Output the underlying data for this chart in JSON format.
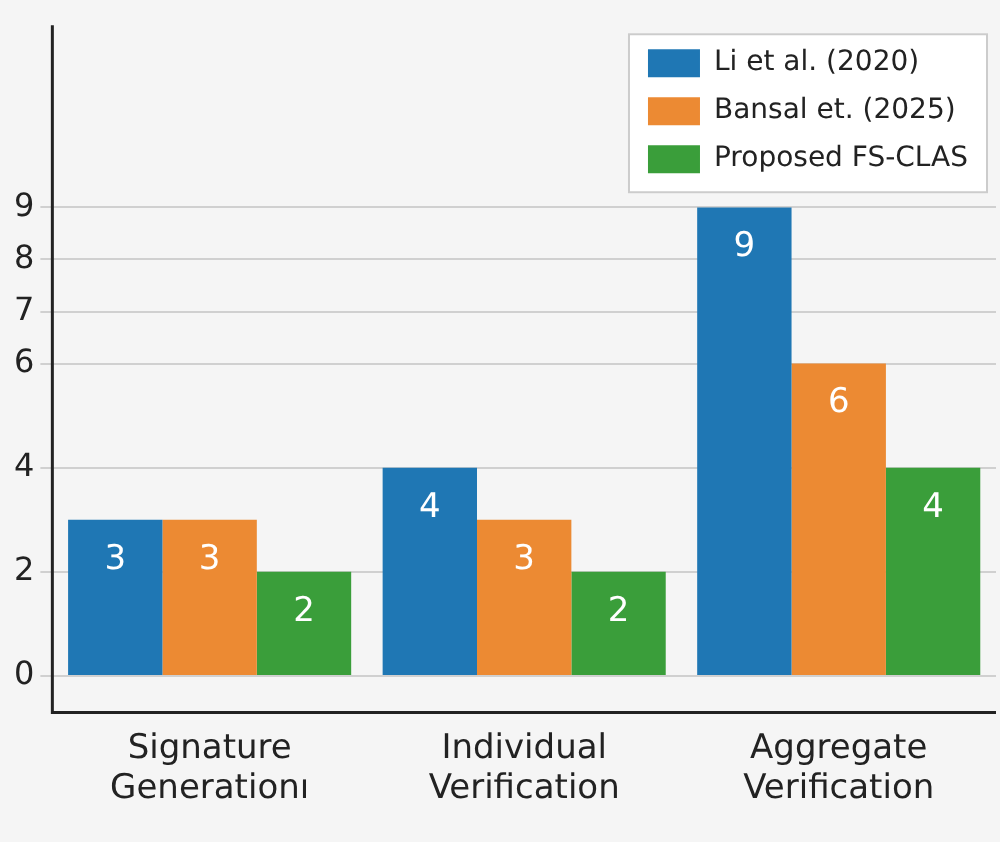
{
  "chart_data": {
    "type": "bar",
    "categories": [
      "Signature\nGenerationı",
      "Individual\nVerification",
      "Aggregate\nVerification"
    ],
    "series": [
      {
        "name": "Li et al. (2020)",
        "color": "#1f77b4",
        "values": [
          3,
          4,
          9
        ]
      },
      {
        "name": "Bansal et. (2025)",
        "color": "#ec8a33",
        "values": [
          3,
          3,
          6
        ]
      },
      {
        "name": "Proposed FS-CLAS",
        "color": "#3a9e3a",
        "values": [
          2,
          2,
          4
        ]
      }
    ],
    "data_labels": true,
    "ylim": [
      -0.7,
      12.5
    ],
    "yticks": [
      0,
      2,
      4,
      6,
      7,
      8,
      9
    ],
    "grid": "y",
    "legend": "top right"
  }
}
